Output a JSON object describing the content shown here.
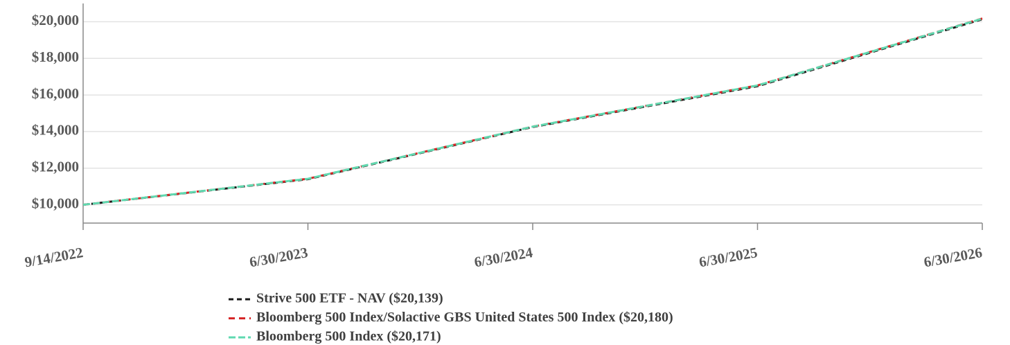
{
  "chart_data": {
    "type": "line",
    "categories": [
      "9/14/2022",
      "6/30/2023",
      "6/30/2024",
      "6/30/2025",
      "6/30/2026"
    ],
    "series": [
      {
        "name": "Strive 500 ETF - NAV ($20,139)",
        "color": "#1a1a1a",
        "values": [
          10000,
          11400,
          14250,
          16480,
          20139
        ]
      },
      {
        "name": "Bloomberg 500 Index/Solactive GBS United States 500 Index ($20,180)",
        "color": "#d62728",
        "values": [
          10000,
          11420,
          14270,
          16520,
          20180
        ]
      },
      {
        "name": "Bloomberg 500 Index ($20,171)",
        "color": "#5fd9b0",
        "values": [
          10000,
          11420,
          14270,
          16520,
          20171
        ]
      }
    ],
    "ylim": [
      9000,
      21000
    ],
    "yticks": [
      {
        "value": 10000,
        "label": "$10,000"
      },
      {
        "value": 12000,
        "label": "$12,000"
      },
      {
        "value": 14000,
        "label": "$14,000"
      },
      {
        "value": 16000,
        "label": "$16,000"
      },
      {
        "value": 18000,
        "label": "$18,000"
      },
      {
        "value": 20000,
        "label": "$20,000"
      }
    ],
    "grid": true
  }
}
